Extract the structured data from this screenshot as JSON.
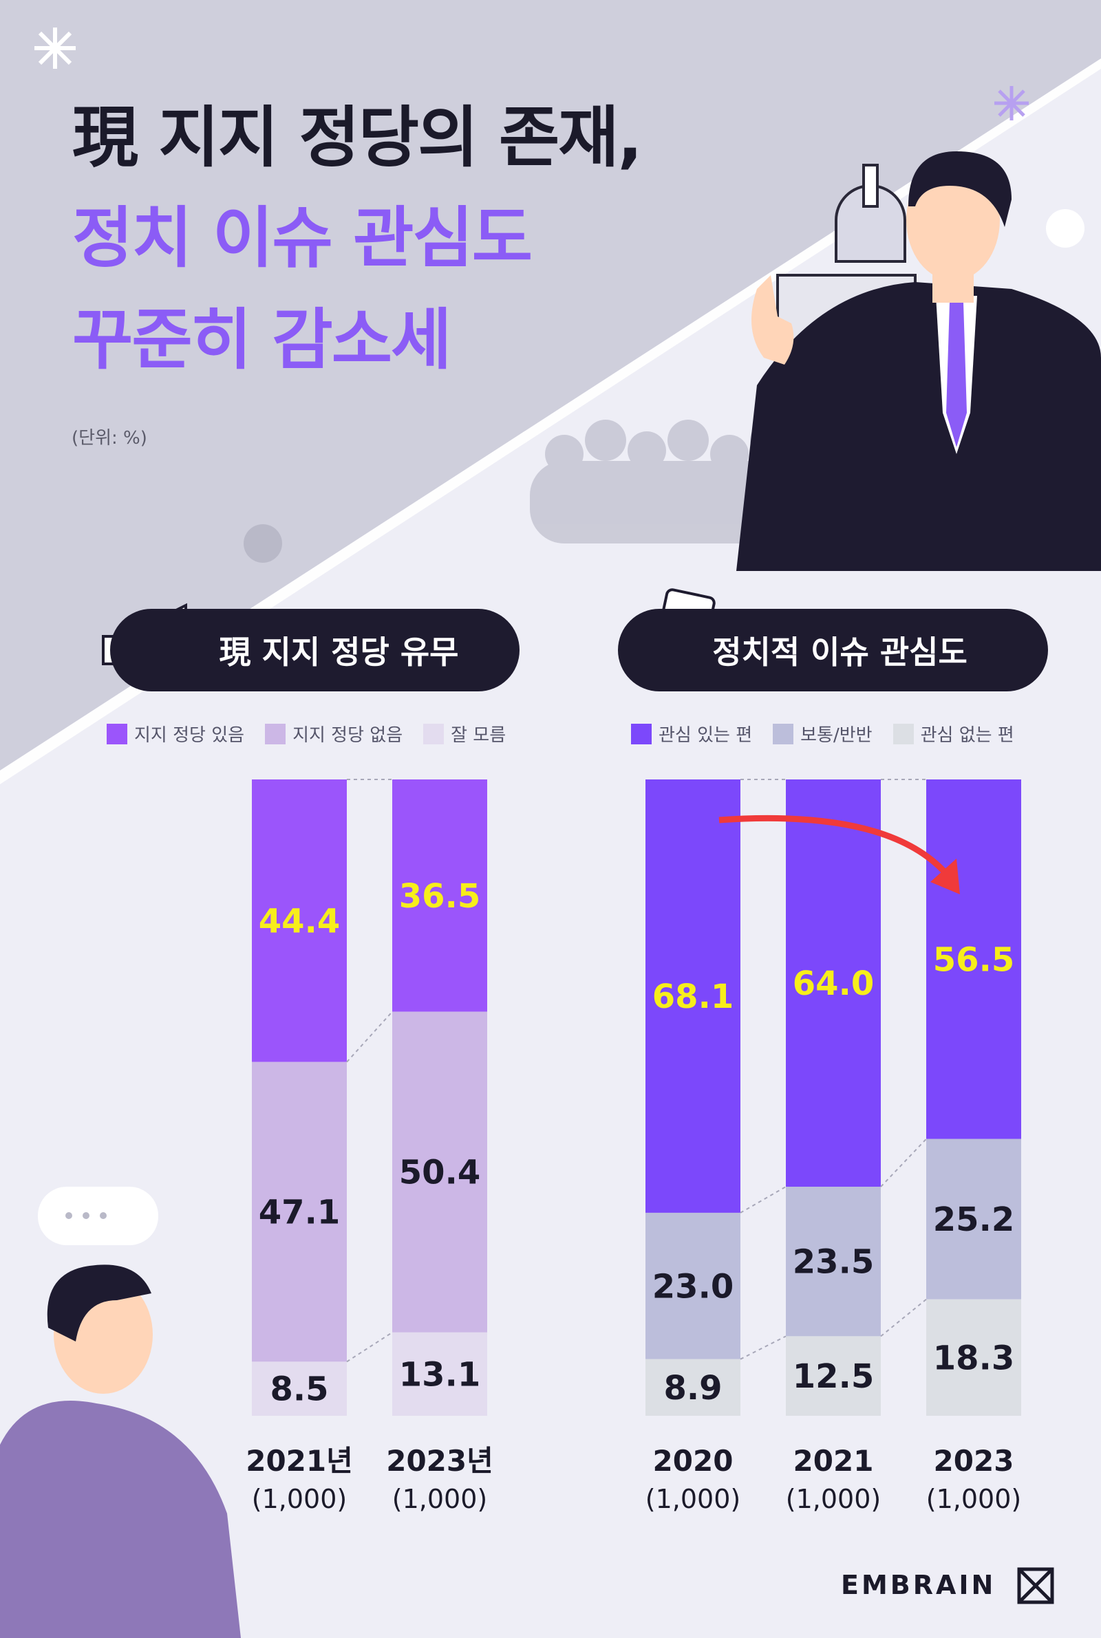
{
  "title": {
    "line1": "現 지지 정당의 존재,",
    "line2": "정치 이슈 관심도",
    "line3": "꾸준히 감소세"
  },
  "unit_note": "(단위: %)",
  "brand": "EMBRAIN",
  "colors": {
    "title_dark": "#1b1a2a",
    "accent_purple": "#8b5cf6",
    "pill_bg": "#1e1b2f",
    "highlight_yellow": "#f7ee1b"
  },
  "chart_data": [
    {
      "type": "bar",
      "stacked": true,
      "title": "現 지지 정당 유무",
      "categories": [
        "2021년",
        "2023년"
      ],
      "sample_sizes": [
        "(1,000)",
        "(1,000)"
      ],
      "series": [
        {
          "name": "지지 정당 있음",
          "values": [
            44.4,
            36.5
          ],
          "color": "#9b55fb",
          "label_color": "#f7ee1b"
        },
        {
          "name": "지지 정당 없음",
          "values": [
            47.1,
            50.4
          ],
          "color": "#ccb7e6",
          "label_color": "#1b1a2a"
        },
        {
          "name": "잘 모름",
          "values": [
            8.5,
            13.1
          ],
          "color": "#e3dcef",
          "label_color": "#1b1a2a"
        }
      ],
      "ylim": [
        0,
        100
      ]
    },
    {
      "type": "bar",
      "stacked": true,
      "title": "정치적 이슈 관심도",
      "categories": [
        "2020",
        "2021",
        "2023"
      ],
      "sample_sizes": [
        "(1,000)",
        "(1,000)",
        "(1,000)"
      ],
      "series": [
        {
          "name": "관심 있는 편",
          "values": [
            68.1,
            64.0,
            56.5
          ],
          "color": "#7c48fb",
          "label_color": "#f7ee1b"
        },
        {
          "name": "보통/반반",
          "values": [
            23.0,
            23.5,
            25.2
          ],
          "color": "#bcbedb",
          "label_color": "#1b1a2a"
        },
        {
          "name": "관심 없는 편",
          "values": [
            8.9,
            12.5,
            18.3
          ],
          "color": "#dcdfe4",
          "label_color": "#1b1a2a"
        }
      ],
      "ylim": [
        0,
        100
      ]
    }
  ]
}
